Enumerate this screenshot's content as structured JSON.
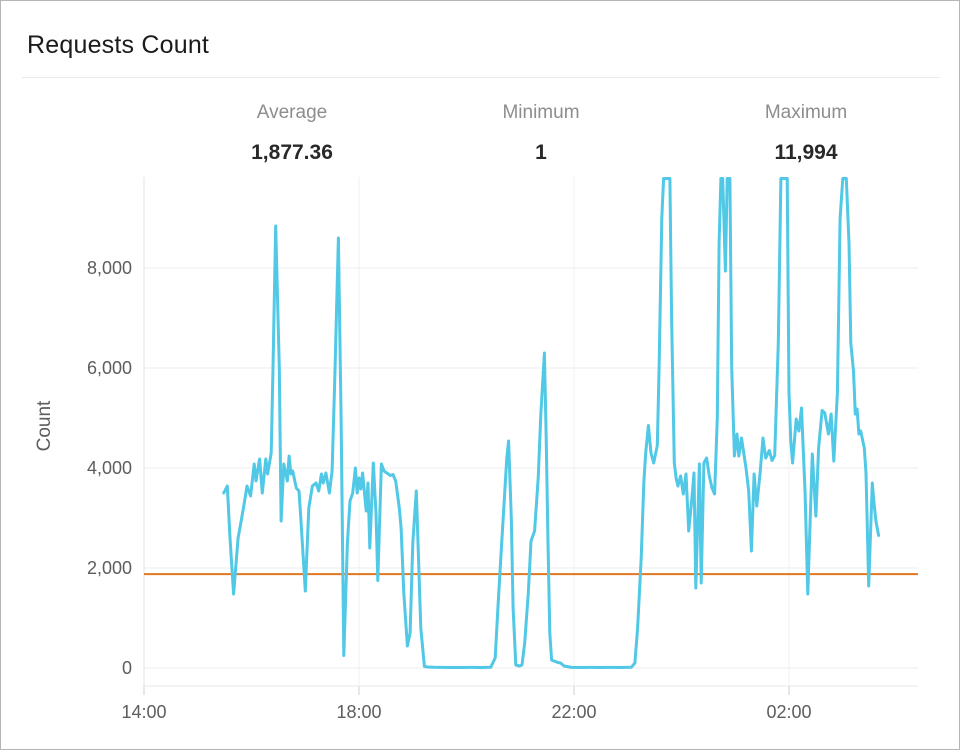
{
  "header": {
    "title": "Requests Count"
  },
  "stats": [
    {
      "label": "Average",
      "value": "1,877.36"
    },
    {
      "label": "Minimum",
      "value": "1"
    },
    {
      "label": "Maximum",
      "value": "11,994"
    }
  ],
  "colors": {
    "line": "#50c8e6",
    "average_line": "#e0761f",
    "grid": "#ececec",
    "vgrid": "#f1f1f1",
    "axis_line": "#e7e7e7",
    "tick_mark": "#cfcfcf",
    "tick_text": "#5d5d5d"
  },
  "chart_data": {
    "type": "line",
    "title": "Requests Count",
    "series_name": "Requests Count",
    "xlabel": "",
    "ylabel": "Count",
    "grid": true,
    "legend_position": "none",
    "y_ticks": [
      0,
      2000,
      4000,
      6000,
      8000
    ],
    "y_tick_labels": [
      "0",
      "2,000",
      "4,000",
      "6,000",
      "8,000"
    ],
    "x_tick_labels": [
      "14:00",
      "18:00",
      "22:00",
      "02:00"
    ],
    "x_tick_minutes": [
      0,
      240,
      480,
      720
    ],
    "x_unit": "minutes after 14:00",
    "ylim": [
      0,
      9820
    ],
    "clip_note": "spikes above ~9,820 are clipped at plot top",
    "average_line_value": 1877.36,
    "stats": {
      "average": 1877.36,
      "minimum": 1,
      "maximum": 11994
    },
    "points": [
      [
        89,
        3500
      ],
      [
        93,
        3640
      ],
      [
        96,
        2600
      ],
      [
        100,
        1480
      ],
      [
        105,
        2600
      ],
      [
        108,
        2900
      ],
      [
        112,
        3300
      ],
      [
        115,
        3640
      ],
      [
        119,
        3440
      ],
      [
        123,
        4080
      ],
      [
        125,
        3740
      ],
      [
        129,
        4180
      ],
      [
        132,
        3500
      ],
      [
        136,
        4180
      ],
      [
        138,
        3880
      ],
      [
        142,
        4300
      ],
      [
        144,
        6000
      ],
      [
        147,
        8840
      ],
      [
        151,
        6000
      ],
      [
        153,
        2940
      ],
      [
        156,
        4080
      ],
      [
        160,
        3740
      ],
      [
        162,
        4240
      ],
      [
        164,
        3880
      ],
      [
        166,
        3940
      ],
      [
        170,
        3600
      ],
      [
        173,
        3540
      ],
      [
        175,
        3000
      ],
      [
        180,
        1540
      ],
      [
        184,
        3200
      ],
      [
        188,
        3640
      ],
      [
        192,
        3700
      ],
      [
        195,
        3540
      ],
      [
        198,
        3880
      ],
      [
        200,
        3700
      ],
      [
        203,
        3900
      ],
      [
        207,
        3500
      ],
      [
        210,
        3940
      ],
      [
        213,
        5800
      ],
      [
        217,
        8600
      ],
      [
        220,
        5000
      ],
      [
        223,
        250
      ],
      [
        227,
        2500
      ],
      [
        230,
        3340
      ],
      [
        233,
        3500
      ],
      [
        236,
        4000
      ],
      [
        238,
        3500
      ],
      [
        240,
        3800
      ],
      [
        242,
        3580
      ],
      [
        244,
        3900
      ],
      [
        248,
        3140
      ],
      [
        250,
        3700
      ],
      [
        252,
        2400
      ],
      [
        256,
        4100
      ],
      [
        259,
        3100
      ],
      [
        261,
        1750
      ],
      [
        265,
        4080
      ],
      [
        268,
        3940
      ],
      [
        271,
        3900
      ],
      [
        275,
        3850
      ],
      [
        278,
        3870
      ],
      [
        281,
        3740
      ],
      [
        285,
        3200
      ],
      [
        287,
        2800
      ],
      [
        290,
        1500
      ],
      [
        294,
        440
      ],
      [
        297,
        700
      ],
      [
        300,
        2500
      ],
      [
        304,
        3540
      ],
      [
        307,
        1900
      ],
      [
        309,
        800
      ],
      [
        313,
        30
      ],
      [
        317,
        20
      ],
      [
        323,
        15
      ],
      [
        332,
        12
      ],
      [
        343,
        10
      ],
      [
        354,
        10
      ],
      [
        365,
        12
      ],
      [
        376,
        10
      ],
      [
        387,
        15
      ],
      [
        392,
        200
      ],
      [
        395,
        1200
      ],
      [
        399,
        2400
      ],
      [
        402,
        3300
      ],
      [
        405,
        4200
      ],
      [
        407,
        4540
      ],
      [
        410,
        3000
      ],
      [
        412,
        1200
      ],
      [
        415,
        60
      ],
      [
        419,
        40
      ],
      [
        422,
        60
      ],
      [
        425,
        500
      ],
      [
        429,
        1500
      ],
      [
        432,
        2540
      ],
      [
        436,
        2740
      ],
      [
        440,
        3800
      ],
      [
        443,
        5100
      ],
      [
        447,
        6300
      ],
      [
        449,
        4600
      ],
      [
        451,
        2500
      ],
      [
        453,
        700
      ],
      [
        455,
        160
      ],
      [
        459,
        130
      ],
      [
        462,
        110
      ],
      [
        465,
        100
      ],
      [
        469,
        40
      ],
      [
        477,
        12
      ],
      [
        488,
        10
      ],
      [
        499,
        12
      ],
      [
        510,
        10
      ],
      [
        521,
        12
      ],
      [
        532,
        10
      ],
      [
        544,
        15
      ],
      [
        548,
        100
      ],
      [
        551,
        800
      ],
      [
        555,
        2200
      ],
      [
        558,
        3740
      ],
      [
        560,
        4300
      ],
      [
        563,
        4850
      ],
      [
        566,
        4300
      ],
      [
        569,
        4100
      ],
      [
        573,
        4450
      ],
      [
        575,
        6000
      ],
      [
        578,
        9000
      ],
      [
        580,
        11000
      ],
      [
        584,
        11994
      ],
      [
        587,
        10500
      ],
      [
        589,
        7000
      ],
      [
        592,
        4100
      ],
      [
        594,
        3800
      ],
      [
        596,
        3640
      ],
      [
        599,
        3840
      ],
      [
        602,
        3480
      ],
      [
        605,
        3880
      ],
      [
        608,
        2740
      ],
      [
        612,
        3480
      ],
      [
        614,
        3900
      ],
      [
        616,
        1600
      ],
      [
        620,
        4080
      ],
      [
        622,
        1700
      ],
      [
        625,
        4100
      ],
      [
        628,
        4200
      ],
      [
        631,
        3840
      ],
      [
        634,
        3600
      ],
      [
        637,
        3480
      ],
      [
        640,
        5000
      ],
      [
        642,
        8500
      ],
      [
        644,
        10800
      ],
      [
        646,
        10500
      ],
      [
        649,
        7940
      ],
      [
        651,
        10500
      ],
      [
        654,
        10200
      ],
      [
        656,
        6000
      ],
      [
        659,
        4240
      ],
      [
        662,
        4680
      ],
      [
        664,
        4240
      ],
      [
        667,
        4600
      ],
      [
        670,
        4240
      ],
      [
        672,
        4000
      ],
      [
        675,
        3540
      ],
      [
        678,
        2340
      ],
      [
        681,
        3880
      ],
      [
        684,
        3240
      ],
      [
        688,
        3950
      ],
      [
        691,
        4600
      ],
      [
        694,
        4200
      ],
      [
        698,
        4350
      ],
      [
        701,
        4150
      ],
      [
        704,
        4250
      ],
      [
        708,
        6500
      ],
      [
        711,
        10300
      ],
      [
        714,
        11500
      ],
      [
        718,
        10300
      ],
      [
        720,
        5500
      ],
      [
        722,
        4540
      ],
      [
        724,
        4100
      ],
      [
        728,
        4980
      ],
      [
        731,
        4740
      ],
      [
        734,
        5200
      ],
      [
        738,
        3500
      ],
      [
        741,
        1480
      ],
      [
        746,
        4280
      ],
      [
        750,
        3040
      ],
      [
        753,
        4400
      ],
      [
        757,
        5150
      ],
      [
        760,
        5100
      ],
      [
        764,
        4680
      ],
      [
        767,
        5080
      ],
      [
        770,
        4140
      ],
      [
        774,
        5500
      ],
      [
        777,
        9000
      ],
      [
        780,
        11200
      ],
      [
        784,
        10800
      ],
      [
        787,
        8500
      ],
      [
        789,
        6500
      ],
      [
        792,
        5940
      ],
      [
        794,
        5080
      ],
      [
        796,
        5180
      ],
      [
        798,
        4680
      ],
      [
        800,
        4740
      ],
      [
        804,
        4400
      ],
      [
        806,
        3900
      ],
      [
        809,
        1640
      ],
      [
        813,
        3700
      ],
      [
        815,
        3280
      ],
      [
        817,
        2940
      ],
      [
        820,
        2650
      ]
    ]
  }
}
